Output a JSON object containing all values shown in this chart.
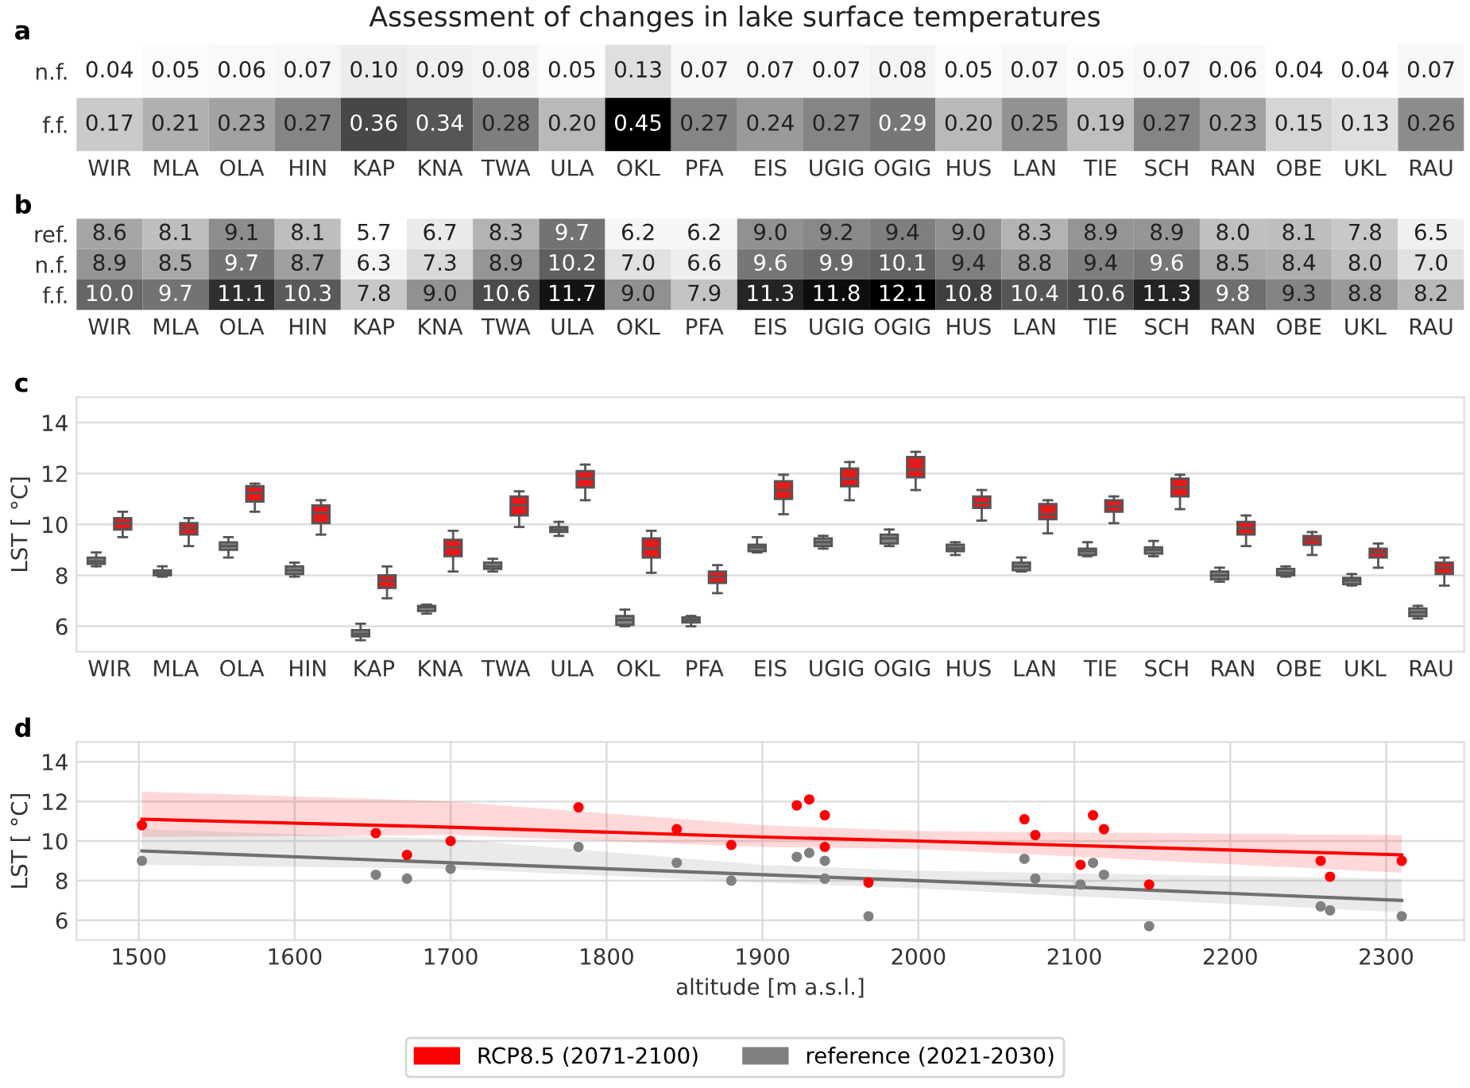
{
  "chart_data": [
    {
      "type": "heatmap",
      "title": "Assessment of changes in lake surface temperatures",
      "subtitle": "a",
      "categories": [
        "WIR",
        "MLA",
        "OLA",
        "HIN",
        "KAP",
        "KNA",
        "TWA",
        "ULA",
        "OKL",
        "PFA",
        "EIS",
        "UGIG",
        "OGIG",
        "HUS",
        "LAN",
        "TIE",
        "SCH",
        "RAN",
        "OBE",
        "UKL",
        "RAU"
      ],
      "y_categories": [
        "n.f.",
        "f.f."
      ],
      "cells": [
        [
          0.04,
          0.05,
          0.06,
          0.07,
          0.1,
          0.09,
          0.08,
          0.05,
          0.13,
          0.07,
          0.07,
          0.07,
          0.08,
          0.05,
          0.07,
          0.05,
          0.07,
          0.06,
          0.04,
          0.04,
          0.07
        ],
        [
          0.17,
          0.21,
          0.23,
          0.27,
          0.36,
          0.34,
          0.28,
          0.2,
          0.45,
          0.27,
          0.24,
          0.27,
          0.29,
          0.2,
          0.25,
          0.19,
          0.27,
          0.23,
          0.15,
          0.13,
          0.26
        ]
      ],
      "cell_labels": [
        [
          "0.04",
          "0.05",
          "0.06",
          "0.07",
          "0.10",
          "0.09",
          "0.08",
          "0.05",
          "0.13",
          "0.07",
          "0.07",
          "0.07",
          "0.08",
          "0.05",
          "0.07",
          "0.05",
          "0.07",
          "0.06",
          "0.04",
          "0.04",
          "0.07"
        ],
        [
          "0.17",
          "0.21",
          "0.23",
          "0.27",
          "0.36",
          "0.34",
          "0.28",
          "0.20",
          "0.45",
          "0.27",
          "0.24",
          "0.27",
          "0.29",
          "0.20",
          "0.25",
          "0.19",
          "0.27",
          "0.23",
          "0.15",
          "0.13",
          "0.26"
        ]
      ]
    },
    {
      "type": "heatmap",
      "subtitle": "b",
      "categories": [
        "WIR",
        "MLA",
        "OLA",
        "HIN",
        "KAP",
        "KNA",
        "TWA",
        "ULA",
        "OKL",
        "PFA",
        "EIS",
        "UGIG",
        "OGIG",
        "HUS",
        "LAN",
        "TIE",
        "SCH",
        "RAN",
        "OBE",
        "UKL",
        "RAU"
      ],
      "y_categories": [
        "ref.",
        "n.f.",
        "f.f."
      ],
      "cells": [
        [
          8.6,
          8.1,
          9.1,
          8.1,
          5.7,
          6.7,
          8.3,
          9.7,
          6.2,
          6.2,
          9.0,
          9.2,
          9.4,
          9.0,
          8.3,
          8.9,
          8.9,
          8.0,
          8.1,
          7.8,
          6.5
        ],
        [
          8.9,
          8.5,
          9.7,
          8.7,
          6.3,
          7.3,
          8.9,
          10.2,
          7.0,
          6.6,
          9.6,
          9.9,
          10.1,
          9.4,
          8.8,
          9.4,
          9.6,
          8.5,
          8.4,
          8.0,
          7.0
        ],
        [
          10.0,
          9.7,
          11.1,
          10.3,
          7.8,
          9.0,
          10.6,
          11.7,
          9.0,
          7.9,
          11.3,
          11.8,
          12.1,
          10.8,
          10.4,
          10.6,
          11.3,
          9.8,
          9.3,
          8.8,
          8.2
        ]
      ],
      "cell_labels": [
        [
          "8.6",
          "8.1",
          "9.1",
          "8.1",
          "5.7",
          "6.7",
          "8.3",
          "9.7",
          "6.2",
          "6.2",
          "9.0",
          "9.2",
          "9.4",
          "9.0",
          "8.3",
          "8.9",
          "8.9",
          "8.0",
          "8.1",
          "7.8",
          "6.5"
        ],
        [
          "8.9",
          "8.5",
          "9.7",
          "8.7",
          "6.3",
          "7.3",
          "8.9",
          "10.2",
          "7.0",
          "6.6",
          "9.6",
          "9.9",
          "10.1",
          "9.4",
          "8.8",
          "9.4",
          "9.6",
          "8.5",
          "8.4",
          "8.0",
          "7.0"
        ],
        [
          "10.0",
          "9.7",
          "11.1",
          "10.3",
          "7.8",
          "9.0",
          "10.6",
          "11.7",
          "9.0",
          "7.9",
          "11.3",
          "11.8",
          "12.1",
          "10.8",
          "10.4",
          "10.6",
          "11.3",
          "9.8",
          "9.3",
          "8.8",
          "8.2"
        ]
      ]
    },
    {
      "type": "box",
      "subtitle": "c",
      "ylabel": "LST [ °C]",
      "ylim": [
        5,
        15
      ],
      "yticks": [
        6,
        8,
        10,
        12,
        14
      ],
      "grid": "y",
      "categories": [
        "WIR",
        "MLA",
        "OLA",
        "HIN",
        "KAP",
        "KNA",
        "TWA",
        "ULA",
        "OKL",
        "PFA",
        "EIS",
        "UGIG",
        "OGIG",
        "HUS",
        "LAN",
        "TIE",
        "SCH",
        "RAN",
        "OBE",
        "UKL",
        "RAU"
      ],
      "series": [
        {
          "color": "#808080",
          "boxes": [
            {
              "low": 8.35,
              "q1": 8.45,
              "median": 8.55,
              "q3": 8.7,
              "high": 8.9
            },
            {
              "low": 7.95,
              "q1": 8.0,
              "median": 8.1,
              "q3": 8.2,
              "high": 8.35
            },
            {
              "low": 8.7,
              "q1": 9.0,
              "median": 9.15,
              "q3": 9.3,
              "high": 9.5
            },
            {
              "low": 7.95,
              "q1": 8.05,
              "median": 8.2,
              "q3": 8.35,
              "high": 8.5
            },
            {
              "low": 5.45,
              "q1": 5.6,
              "median": 5.7,
              "q3": 5.85,
              "high": 6.1
            },
            {
              "low": 6.5,
              "q1": 6.6,
              "median": 6.75,
              "q3": 6.8,
              "high": 6.85
            },
            {
              "low": 8.15,
              "q1": 8.25,
              "median": 8.35,
              "q3": 8.5,
              "high": 8.65
            },
            {
              "low": 9.55,
              "q1": 9.7,
              "median": 9.8,
              "q3": 9.9,
              "high": 10.1
            },
            {
              "low": 6.0,
              "q1": 6.05,
              "median": 6.25,
              "q3": 6.4,
              "high": 6.65
            },
            {
              "low": 6.0,
              "q1": 6.15,
              "median": 6.25,
              "q3": 6.35,
              "high": 6.4
            },
            {
              "low": 8.9,
              "q1": 8.95,
              "median": 9.1,
              "q3": 9.2,
              "high": 9.5
            },
            {
              "low": 9.05,
              "q1": 9.15,
              "median": 9.3,
              "q3": 9.45,
              "high": 9.55
            },
            {
              "low": 9.15,
              "q1": 9.25,
              "median": 9.45,
              "q3": 9.6,
              "high": 9.8
            },
            {
              "low": 8.8,
              "q1": 8.95,
              "median": 9.05,
              "q3": 9.2,
              "high": 9.3
            },
            {
              "low": 8.15,
              "q1": 8.2,
              "median": 8.35,
              "q3": 8.5,
              "high": 8.7
            },
            {
              "low": 8.75,
              "q1": 8.8,
              "median": 8.95,
              "q3": 9.05,
              "high": 9.3
            },
            {
              "low": 8.75,
              "q1": 8.85,
              "median": 9.0,
              "q3": 9.1,
              "high": 9.35
            },
            {
              "low": 7.75,
              "q1": 7.85,
              "median": 8.0,
              "q3": 8.15,
              "high": 8.3
            },
            {
              "low": 7.95,
              "q1": 8.0,
              "median": 8.1,
              "q3": 8.25,
              "high": 8.35
            },
            {
              "low": 7.6,
              "q1": 7.65,
              "median": 7.8,
              "q3": 7.9,
              "high": 8.05
            },
            {
              "low": 6.3,
              "q1": 6.4,
              "median": 6.55,
              "q3": 6.7,
              "high": 6.8
            }
          ]
        },
        {
          "color": "#e41a1c",
          "boxes": [
            {
              "low": 9.5,
              "q1": 9.8,
              "median": 10.05,
              "q3": 10.25,
              "high": 10.5
            },
            {
              "low": 9.15,
              "q1": 9.6,
              "median": 9.85,
              "q3": 10.05,
              "high": 10.25
            },
            {
              "low": 10.5,
              "q1": 10.9,
              "median": 11.25,
              "q3": 11.5,
              "high": 11.6
            },
            {
              "low": 9.6,
              "q1": 10.05,
              "median": 10.45,
              "q3": 10.75,
              "high": 10.95
            },
            {
              "low": 7.1,
              "q1": 7.5,
              "median": 7.8,
              "q3": 8.0,
              "high": 8.35
            },
            {
              "low": 8.15,
              "q1": 8.75,
              "median": 9.1,
              "q3": 9.4,
              "high": 9.75
            },
            {
              "low": 9.9,
              "q1": 10.35,
              "median": 10.75,
              "q3": 11.1,
              "high": 11.3
            },
            {
              "low": 10.95,
              "q1": 11.45,
              "median": 11.8,
              "q3": 12.1,
              "high": 12.35
            },
            {
              "low": 8.1,
              "q1": 8.7,
              "median": 9.05,
              "q3": 9.45,
              "high": 9.75
            },
            {
              "low": 7.3,
              "q1": 7.7,
              "median": 7.95,
              "q3": 8.15,
              "high": 8.4
            },
            {
              "low": 10.4,
              "q1": 11.0,
              "median": 11.35,
              "q3": 11.7,
              "high": 11.95
            },
            {
              "low": 10.95,
              "q1": 11.5,
              "median": 11.8,
              "q3": 12.2,
              "high": 12.45
            },
            {
              "low": 11.35,
              "q1": 11.85,
              "median": 12.15,
              "q3": 12.65,
              "high": 12.85
            },
            {
              "low": 10.15,
              "q1": 10.65,
              "median": 10.85,
              "q3": 11.1,
              "high": 11.35
            },
            {
              "low": 9.65,
              "q1": 10.2,
              "median": 10.4,
              "q3": 10.8,
              "high": 10.95
            },
            {
              "low": 10.05,
              "q1": 10.5,
              "median": 10.7,
              "q3": 10.95,
              "high": 11.1
            },
            {
              "low": 10.6,
              "q1": 11.1,
              "median": 11.45,
              "q3": 11.8,
              "high": 11.95
            },
            {
              "low": 9.15,
              "q1": 9.6,
              "median": 9.85,
              "q3": 10.1,
              "high": 10.35
            },
            {
              "low": 8.8,
              "q1": 9.2,
              "median": 9.4,
              "q3": 9.55,
              "high": 9.7
            },
            {
              "low": 8.3,
              "q1": 8.7,
              "median": 8.9,
              "q3": 9.05,
              "high": 9.25
            },
            {
              "low": 7.6,
              "q1": 8.05,
              "median": 8.3,
              "q3": 8.5,
              "high": 8.7
            }
          ]
        }
      ]
    },
    {
      "type": "scatter",
      "subtitle": "d",
      "ylabel": "LST [ °C]",
      "xlabel": "altitude [m a.s.l.]",
      "xlim": [
        1460,
        2350
      ],
      "xticks": [
        1500,
        1600,
        1700,
        1800,
        1900,
        2000,
        2100,
        2200,
        2300
      ],
      "ylim": [
        5,
        15
      ],
      "yticks": [
        6,
        8,
        10,
        12,
        14
      ],
      "grid": true,
      "legend": "bottom",
      "x": [
        1502,
        1652,
        1672,
        1700,
        1782,
        1845,
        1880,
        1922,
        1930,
        1940,
        1940,
        1968,
        2068,
        2075,
        2104,
        2112,
        2119,
        2148,
        2258,
        2264,
        2310
      ],
      "series": [
        {
          "name": "RCP8.5 (2071-2100)",
          "color": "#ff0000",
          "marker": "circle",
          "values": [
            10.8,
            10.4,
            9.3,
            10.0,
            11.7,
            10.6,
            9.8,
            11.8,
            12.1,
            11.3,
            9.7,
            7.9,
            11.1,
            10.3,
            8.8,
            11.3,
            10.6,
            7.8,
            9.0,
            8.2,
            9.0
          ]
        },
        {
          "name": "reference (2021-2030)",
          "color": "#808080",
          "marker": "circle",
          "values": [
            9.0,
            8.3,
            8.1,
            8.6,
            9.7,
            8.9,
            8.0,
            9.2,
            9.4,
            9.0,
            8.1,
            6.2,
            9.1,
            8.1,
            7.8,
            8.9,
            8.3,
            5.7,
            6.7,
            6.5,
            6.2
          ]
        },
        {
          "type": "line",
          "color": "#ff0000",
          "x": [
            1502,
            1700,
            1900,
            2000,
            2310
          ],
          "values": [
            11.1,
            10.7,
            10.2,
            10.0,
            9.3
          ],
          "lower": [
            10.2,
            10.3,
            9.7,
            9.6,
            8.4
          ],
          "upper": [
            12.5,
            12.0,
            10.8,
            10.5,
            10.3
          ]
        },
        {
          "type": "line",
          "color": "#707070",
          "x": [
            1502,
            1700,
            1900,
            2000,
            2310
          ],
          "values": [
            9.5,
            8.9,
            8.3,
            8.0,
            7.0
          ],
          "lower": [
            8.8,
            8.6,
            7.9,
            7.6,
            6.4
          ],
          "upper": [
            10.6,
            10.1,
            8.8,
            8.5,
            8.1
          ]
        }
      ]
    }
  ]
}
